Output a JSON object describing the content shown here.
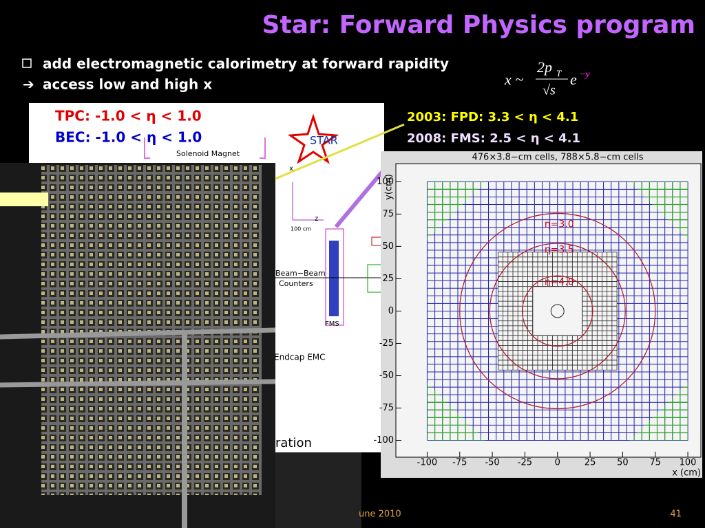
{
  "header": {
    "title": "Star: Forward Physics program"
  },
  "bullets": [
    "add electromagnetic calorimetry at forward rapidity",
    "access low and high x"
  ],
  "formula": {
    "lhs": "x ~",
    "num": "2p",
    "num_sub": "T",
    "den": "√s",
    "base": "e",
    "exp": "−y"
  },
  "coverage": [
    "TPC: -1.0 < η < 1.0",
    "BEC: -1.0 < η < 1.0",
    "2003:  FPD:  3.3 < η < 4.1",
    "2008:  FMS: 2.5 < η < 4.1"
  ],
  "diagram": {
    "labels": [
      "STAR",
      "Solenoid Magnet",
      "x",
      "z",
      "100 cm",
      "Beam−Beam",
      "Counters",
      "FMS",
      "Endcap EMC",
      "ration"
    ]
  },
  "plot": {
    "title": "476×3.8−cm cells, 788×5.8−cm cells",
    "xlabel": "x (cm)",
    "ylabel": "y(cm)",
    "xlim": [
      -124,
      110
    ],
    "ylim": [
      -113,
      114
    ],
    "xticks": [
      -100,
      -75,
      -50,
      -25,
      0,
      25,
      50,
      75,
      100
    ],
    "yticks": [
      -100,
      -75,
      -50,
      -25,
      0,
      25,
      50,
      75,
      100
    ],
    "circles": [
      {
        "label": "η=3.0",
        "radius": 75
      },
      {
        "label": "η=3.5",
        "radius": 52
      },
      {
        "label": "η=4.0",
        "radius": 27
      }
    ]
  },
  "footer": {
    "date": "une 2010",
    "page": "41"
  }
}
